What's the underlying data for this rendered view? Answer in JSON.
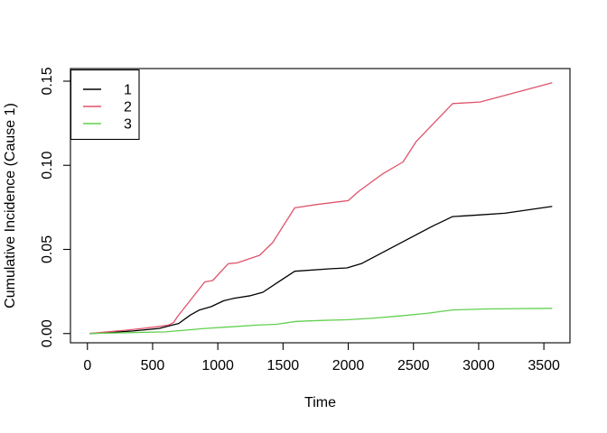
{
  "figure": {
    "background": "#ffffff",
    "frame_color": "#000000",
    "text_color": "#000000"
  },
  "chart_data": {
    "type": "line",
    "title": "",
    "xlabel": "Time",
    "ylabel": "Cumulative Incidence (Cause 1)",
    "grid": false,
    "xlim": [
      -130,
      3700
    ],
    "ylim": [
      -0.0055,
      0.1575
    ],
    "x_ticks": [
      {
        "value": 0,
        "label": "0"
      },
      {
        "value": 500,
        "label": "500"
      },
      {
        "value": 1000,
        "label": "1000"
      },
      {
        "value": 1500,
        "label": "1500"
      },
      {
        "value": 2000,
        "label": "2000"
      },
      {
        "value": 2500,
        "label": "2500"
      },
      {
        "value": 3000,
        "label": "3000"
      },
      {
        "value": 3500,
        "label": "3500"
      }
    ],
    "y_ticks": [
      {
        "value": 0.0,
        "label": "0.00"
      },
      {
        "value": 0.05,
        "label": "0.05"
      },
      {
        "value": 0.1,
        "label": "0.10"
      },
      {
        "value": 0.15,
        "label": "0.15"
      }
    ],
    "legend": {
      "position": "top-left",
      "entries": [
        {
          "label": "1",
          "color": "#000000"
        },
        {
          "label": "2",
          "color": "#DF536B"
        },
        {
          "label": "3",
          "color": "#61D04F"
        }
      ]
    },
    "series": [
      {
        "name": "1",
        "color": "#000000",
        "points": [
          [
            20,
            0.0
          ],
          [
            150,
            0.0005
          ],
          [
            350,
            0.0015
          ],
          [
            550,
            0.003
          ],
          [
            650,
            0.005
          ],
          [
            700,
            0.006
          ],
          [
            790,
            0.011
          ],
          [
            860,
            0.014
          ],
          [
            950,
            0.016
          ],
          [
            1045,
            0.0195
          ],
          [
            1125,
            0.021
          ],
          [
            1250,
            0.0225
          ],
          [
            1345,
            0.0245
          ],
          [
            1460,
            0.0305
          ],
          [
            1590,
            0.037
          ],
          [
            1870,
            0.0385
          ],
          [
            1990,
            0.039
          ],
          [
            2100,
            0.0415
          ],
          [
            2650,
            0.064
          ],
          [
            2800,
            0.0695
          ],
          [
            3000,
            0.0705
          ],
          [
            3200,
            0.0715
          ],
          [
            3560,
            0.0755
          ]
        ]
      },
      {
        "name": "2",
        "color": "#DF536B",
        "points": [
          [
            20,
            0.0
          ],
          [
            150,
            0.001
          ],
          [
            300,
            0.002
          ],
          [
            420,
            0.003
          ],
          [
            530,
            0.004
          ],
          [
            620,
            0.005
          ],
          [
            660,
            0.0065
          ],
          [
            690,
            0.01
          ],
          [
            900,
            0.0307
          ],
          [
            960,
            0.0315
          ],
          [
            1080,
            0.0415
          ],
          [
            1150,
            0.042
          ],
          [
            1320,
            0.0465
          ],
          [
            1420,
            0.054
          ],
          [
            1590,
            0.0747
          ],
          [
            1760,
            0.0767
          ],
          [
            2000,
            0.079
          ],
          [
            2080,
            0.0845
          ],
          [
            2260,
            0.0947
          ],
          [
            2420,
            0.102
          ],
          [
            2520,
            0.114
          ],
          [
            2800,
            0.1367
          ],
          [
            3010,
            0.1376
          ],
          [
            3560,
            0.149
          ]
        ]
      },
      {
        "name": "3",
        "color": "#61D04F",
        "points": [
          [
            20,
            0.0
          ],
          [
            300,
            0.0005
          ],
          [
            600,
            0.001
          ],
          [
            750,
            0.002
          ],
          [
            900,
            0.003
          ],
          [
            1100,
            0.004
          ],
          [
            1300,
            0.005
          ],
          [
            1450,
            0.0055
          ],
          [
            1600,
            0.0072
          ],
          [
            1800,
            0.0078
          ],
          [
            2000,
            0.0082
          ],
          [
            2200,
            0.0092
          ],
          [
            2400,
            0.0105
          ],
          [
            2600,
            0.012
          ],
          [
            2800,
            0.014
          ],
          [
            3050,
            0.0146
          ],
          [
            3300,
            0.0148
          ],
          [
            3560,
            0.015
          ]
        ]
      }
    ]
  }
}
